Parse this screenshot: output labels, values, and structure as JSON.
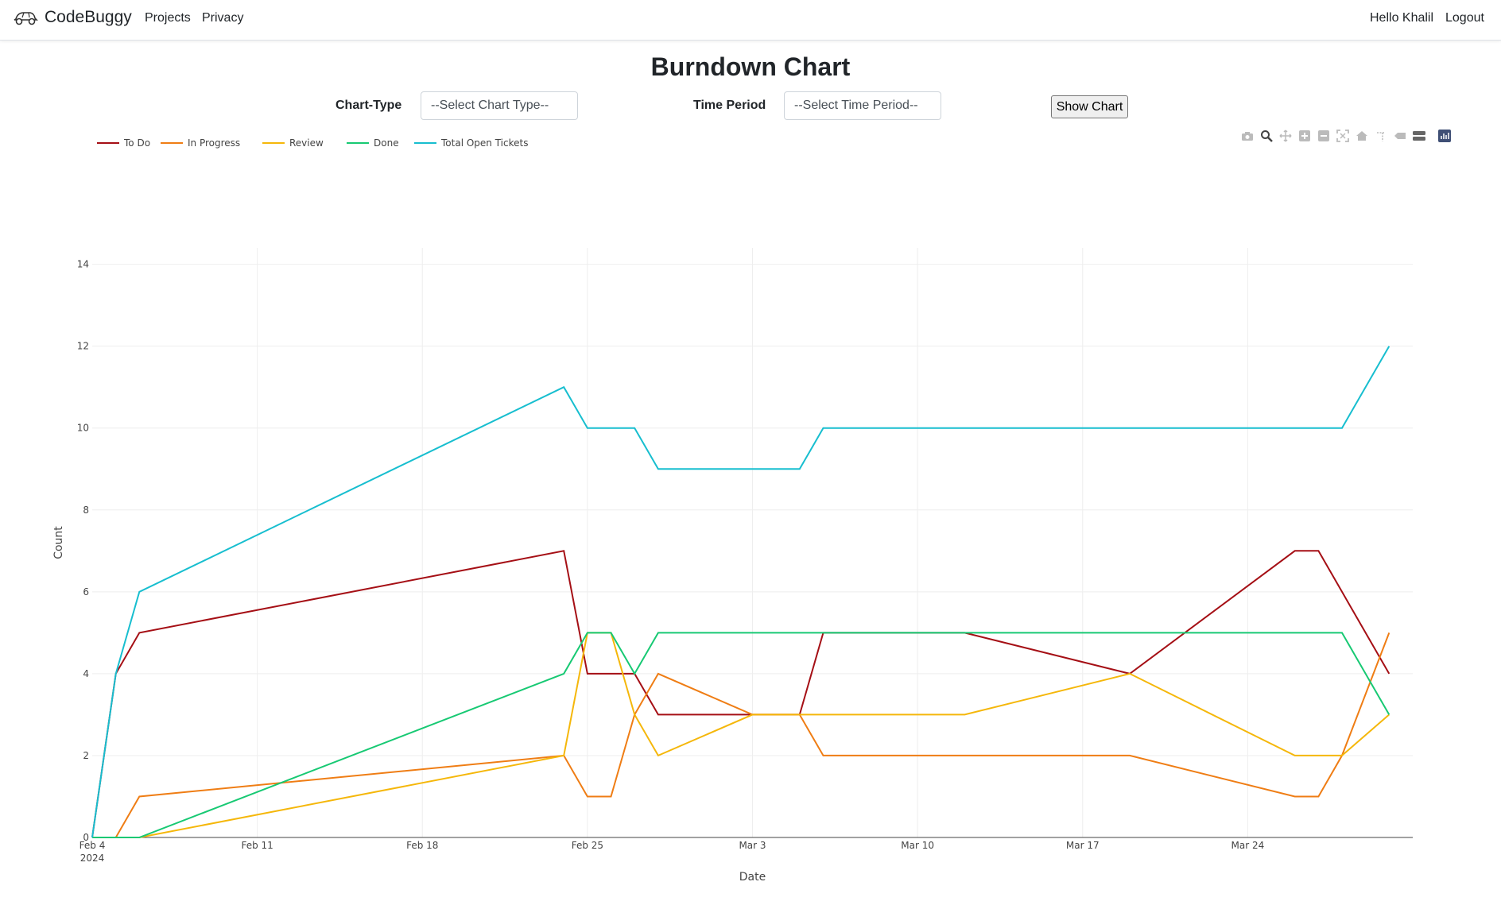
{
  "nav": {
    "brand": "CodeBuggy",
    "links": [
      "Projects",
      "Privacy"
    ],
    "greeting": "Hello Khalil",
    "logout": "Logout"
  },
  "page": {
    "title": "Burndown Chart"
  },
  "controls": {
    "chart_type_label": "Chart-Type",
    "chart_type_value": "--Select Chart Type--",
    "time_period_label": "Time Period",
    "time_period_value": "--Select Time Period--",
    "show_button": "Show Chart"
  },
  "modebar_icons": [
    "camera-icon",
    "zoom-icon",
    "pan-icon",
    "zoom-in-icon",
    "zoom-out-icon",
    "autoscale-icon",
    "reset-axes-icon",
    "spike-lines-icon",
    "hover-closest-icon",
    "hover-compare-icon",
    "plotly-logo-icon"
  ],
  "chart_data": {
    "type": "line",
    "xlabel": "Date",
    "ylabel": "Count",
    "xlim": [
      "2024-02-04",
      "2024-03-31"
    ],
    "ylim": [
      0,
      14.4
    ],
    "yticks": [
      0,
      2,
      4,
      6,
      8,
      10,
      12,
      14
    ],
    "xticks": [
      {
        "date": "2024-02-04",
        "label": "Feb 4",
        "sub": "2024"
      },
      {
        "date": "2024-02-11",
        "label": "Feb 11"
      },
      {
        "date": "2024-02-18",
        "label": "Feb 18"
      },
      {
        "date": "2024-02-25",
        "label": "Feb 25"
      },
      {
        "date": "2024-03-03",
        "label": "Mar 3"
      },
      {
        "date": "2024-03-10",
        "label": "Mar 10"
      },
      {
        "date": "2024-03-17",
        "label": "Mar 17"
      },
      {
        "date": "2024-03-24",
        "label": "Mar 24"
      }
    ],
    "grid": true,
    "legend_position": "top-left",
    "x": [
      "2024-02-04",
      "2024-02-05",
      "2024-02-06",
      "2024-02-24",
      "2024-02-25",
      "2024-02-26",
      "2024-02-27",
      "2024-02-28",
      "2024-03-03",
      "2024-03-05",
      "2024-03-06",
      "2024-03-12",
      "2024-03-19",
      "2024-03-26",
      "2024-03-27",
      "2024-03-28",
      "2024-03-30"
    ],
    "series": [
      {
        "name": "To Do",
        "color": "#a50f15",
        "values": [
          0,
          4,
          5,
          7,
          4,
          4,
          4,
          3,
          3,
          3,
          5,
          5,
          4,
          7,
          7,
          6,
          4
        ]
      },
      {
        "name": "In Progress",
        "color": "#ef7d14",
        "values": [
          0,
          0,
          1,
          2,
          1,
          1,
          3,
          4,
          3,
          3,
          2,
          2,
          2,
          1,
          1,
          2,
          5
        ]
      },
      {
        "name": "Review",
        "color": "#f5b70a",
        "values": [
          0,
          0,
          0,
          2,
          5,
          5,
          3,
          2,
          3,
          3,
          3,
          3,
          4,
          2,
          2,
          2,
          3
        ]
      },
      {
        "name": "Done",
        "color": "#17c973",
        "values": [
          0,
          0,
          0,
          4,
          5,
          5,
          4,
          5,
          5,
          5,
          5,
          5,
          5,
          5,
          5,
          5,
          3
        ]
      },
      {
        "name": "Total Open Tickets",
        "color": "#17becf",
        "values": [
          0,
          4,
          6,
          11,
          10,
          10,
          10,
          9,
          9,
          9,
          10,
          10,
          10,
          10,
          10,
          10,
          12
        ]
      }
    ]
  }
}
